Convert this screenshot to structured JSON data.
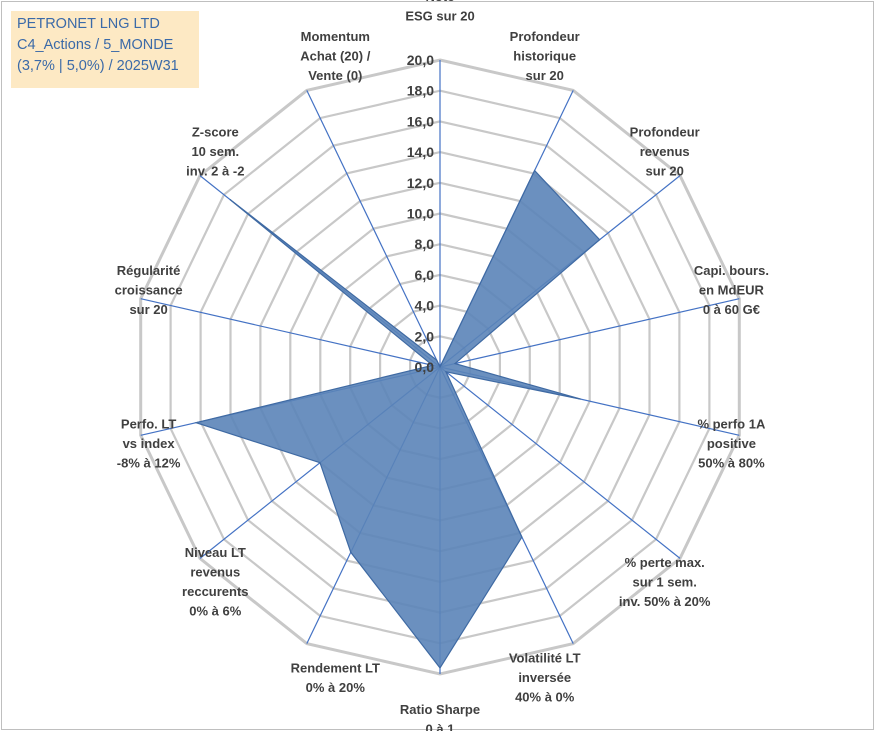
{
  "info": {
    "line1": "PETRONET LNG LTD",
    "line2": "C4_Actions / 5_MONDE",
    "line3": "(3,7% | 5,0%) / 2025W31"
  },
  "colors": {
    "grid": "#c8c8c8",
    "spoke": "#4472c4",
    "fill": "#5b84b8",
    "stroke": "#3f6aa3",
    "info_bg": "#fde9c4",
    "info_text": "#3b6aa8"
  },
  "chart_data": {
    "type": "radar",
    "rmin": 0,
    "rmax": 20,
    "tick_step": 2,
    "tick_labels": [
      "0,0",
      "2,0",
      "4,0",
      "6,0",
      "8,0",
      "10,0",
      "12,0",
      "14,0",
      "16,0",
      "18,0",
      "20,0"
    ],
    "axes": [
      {
        "label": [
          "Note",
          "ESG sur 20"
        ],
        "value": 0
      },
      {
        "label": [
          "Profondeur",
          "historique",
          "sur 20"
        ],
        "value": 14.2
      },
      {
        "label": [
          "Profondeur",
          "revenus",
          "sur 20"
        ],
        "value": 13.3
      },
      {
        "label": [
          "Capi. bours.",
          "en MdEUR",
          "0 à 60 G€"
        ],
        "value": 1.0
      },
      {
        "label": [
          "% perfo 1A",
          "positive",
          "50% à 80%"
        ],
        "value": 9.4
      },
      {
        "label": [
          "% perte max.",
          "sur 1 sem.",
          "inv. 50% à 20%"
        ],
        "value": 0.5
      },
      {
        "label": [
          "Volatilité LT",
          "inversée",
          "40% à 0%"
        ],
        "value": 12.3
      },
      {
        "label": [
          "Ratio Sharpe",
          "0 à 1"
        ],
        "value": 19.6
      },
      {
        "label": [
          "Rendement LT",
          "0% à 20%"
        ],
        "value": 13.4
      },
      {
        "label": [
          "Niveau LT",
          "revenus",
          "reccurents",
          "0% à 6%"
        ],
        "value": 10.0
      },
      {
        "label": [
          "Perfo. LT",
          "vs index",
          "-8% à 12%"
        ],
        "value": 16.3
      },
      {
        "label": [
          "Régularité",
          "croissance",
          "sur 20"
        ],
        "value": 0.5
      },
      {
        "label": [
          "Z-score",
          "10 sem.",
          "inv. 2 à -2"
        ],
        "value": 17.5
      },
      {
        "label": [
          "Momentum",
          "Achat (20) /",
          "Vente (0)"
        ],
        "value": 0.5
      }
    ]
  }
}
